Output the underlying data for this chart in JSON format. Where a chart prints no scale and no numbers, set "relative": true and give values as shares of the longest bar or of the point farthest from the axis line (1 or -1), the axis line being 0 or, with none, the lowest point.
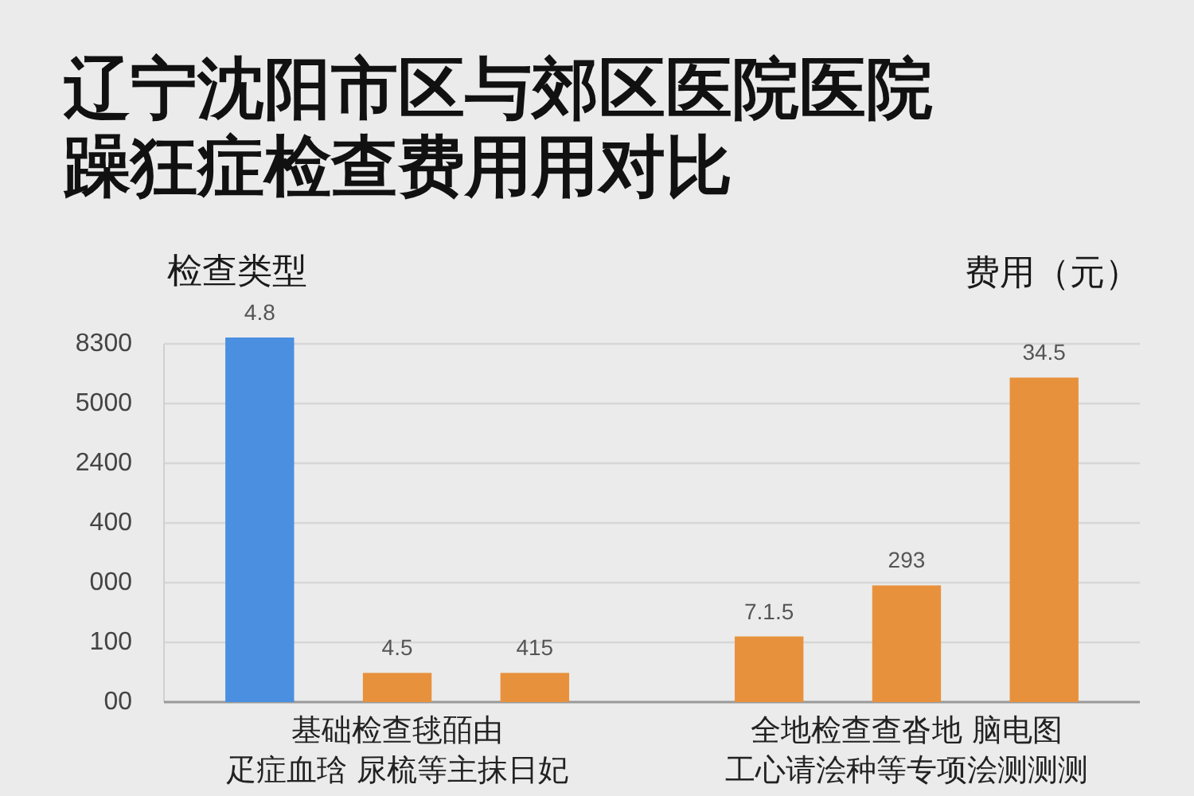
{
  "chart_data": {
    "type": "bar",
    "title": "辽宁沈阳市区与郊区医院医院躁狂症检查费用用对比",
    "xlabel": "检查类型",
    "ylabel": "费用（元）",
    "categories": [
      "基础检查毬皕由疋症血琀 尿梳等主抹日妃",
      "全地检查查沓地 脑电图工心请浍种等专项浍测测测"
    ],
    "relative": true,
    "series": [
      {
        "colors": [
          "#4a8fe0",
          "#e8913c"
        ],
        "values": [
          1,
          0.18
        ]
      },
      {
        "color": "#e8913c",
        "values": [
          0.08,
          0.32
        ]
      },
      {
        "color": "#e8913c",
        "values": [
          0.08,
          0.89
        ]
      }
    ],
    "annotations": [
      "8300",
      "5000",
      "2400",
      "400",
      "000",
      "100",
      "00",
      "4.8",
      "4.5",
      "415",
      "7.1.5",
      "293",
      "34.5"
    ],
    "grid": "y"
  }
}
